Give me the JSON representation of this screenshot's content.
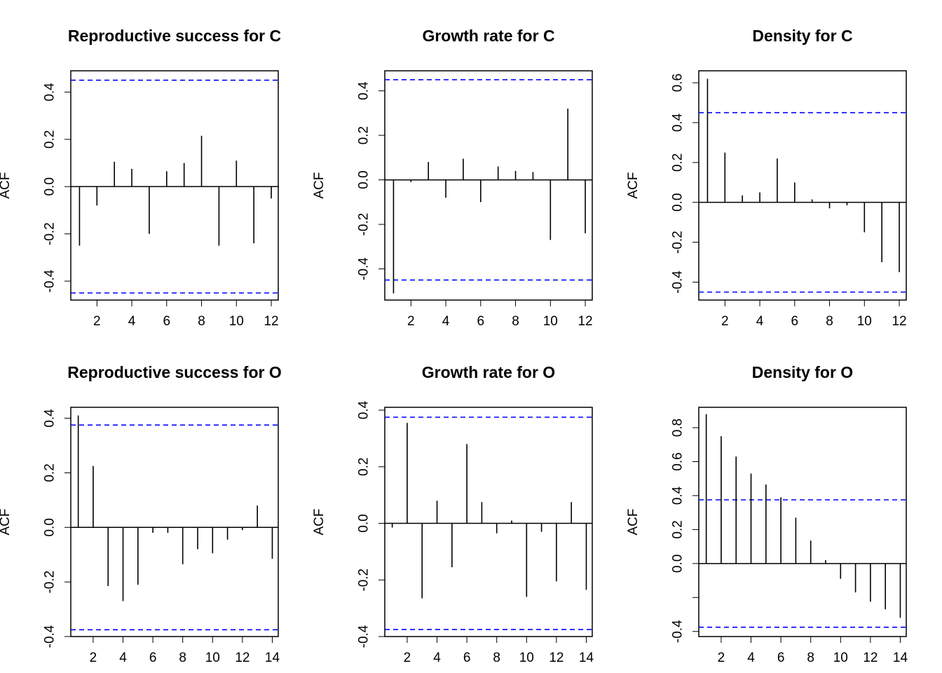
{
  "figure": {
    "bound_color": "#0000ff",
    "line_color": "#000000"
  },
  "chart_data": [
    {
      "type": "bar",
      "title": "Reproductive success for C",
      "ylabel": "ACF",
      "xlabel": "",
      "lags": [
        1,
        2,
        3,
        4,
        5,
        6,
        7,
        8,
        9,
        10,
        11,
        12
      ],
      "values": [
        -0.25,
        -0.08,
        0.105,
        0.075,
        -0.2,
        0.065,
        0.1,
        0.215,
        -0.25,
        0.11,
        -0.24,
        -0.05
      ],
      "bound": 0.45,
      "xlim": [
        0.5,
        12.4
      ],
      "ylim": [
        -0.48,
        0.49
      ],
      "xticks": [
        2,
        4,
        6,
        8,
        10,
        12
      ],
      "yticks": [
        -0.4,
        -0.2,
        0.0,
        0.2,
        0.4
      ],
      "ytick_labels": [
        "-0.4",
        "-0.2",
        "0.0",
        "0.2",
        "0.4"
      ]
    },
    {
      "type": "bar",
      "title": "Growth rate for C",
      "ylabel": "ACF",
      "xlabel": "",
      "lags": [
        1,
        2,
        3,
        4,
        5,
        6,
        7,
        8,
        9,
        10,
        11,
        12
      ],
      "values": [
        -0.51,
        -0.01,
        0.08,
        -0.08,
        0.095,
        -0.1,
        0.06,
        0.04,
        0.035,
        -0.27,
        0.32,
        -0.24
      ],
      "bound": 0.45,
      "xlim": [
        0.5,
        12.4
      ],
      "ylim": [
        -0.54,
        0.49
      ],
      "xticks": [
        2,
        4,
        6,
        8,
        10,
        12
      ],
      "yticks": [
        -0.4,
        -0.2,
        0.0,
        0.2,
        0.4
      ],
      "ytick_labels": [
        "-0.4",
        "-0.2",
        "0.0",
        "0.2",
        "0.4"
      ]
    },
    {
      "type": "bar",
      "title": "Density for C",
      "ylabel": "ACF",
      "xlabel": "",
      "lags": [
        1,
        2,
        3,
        4,
        5,
        6,
        7,
        8,
        9,
        10,
        11,
        12
      ],
      "values": [
        0.62,
        0.25,
        0.035,
        0.05,
        0.22,
        0.1,
        0.015,
        -0.03,
        -0.015,
        -0.15,
        -0.3,
        -0.35
      ],
      "bound": 0.45,
      "xlim": [
        0.5,
        12.4
      ],
      "ylim": [
        -0.49,
        0.66
      ],
      "xticks": [
        2,
        4,
        6,
        8,
        10,
        12
      ],
      "yticks": [
        -0.4,
        -0.2,
        0.0,
        0.2,
        0.4,
        0.6
      ],
      "ytick_labels": [
        "-0.4",
        "-0.2",
        "0.0",
        "0.2",
        "0.4",
        "0.6"
      ]
    },
    {
      "type": "bar",
      "title": "Reproductive success for O",
      "ylabel": "ACF",
      "xlabel": "",
      "lags": [
        1,
        2,
        3,
        4,
        5,
        6,
        7,
        8,
        9,
        10,
        11,
        12,
        13,
        14
      ],
      "values": [
        0.41,
        0.225,
        -0.215,
        -0.27,
        -0.21,
        -0.02,
        -0.02,
        -0.135,
        -0.08,
        -0.095,
        -0.045,
        -0.01,
        0.08,
        -0.115
      ],
      "bound": 0.375,
      "xlim": [
        0.5,
        14.4
      ],
      "ylim": [
        -0.4,
        0.44
      ],
      "xticks": [
        2,
        4,
        6,
        8,
        10,
        12,
        14
      ],
      "yticks": [
        -0.4,
        -0.2,
        0.0,
        0.2,
        0.4
      ],
      "ytick_labels": [
        "-0.4",
        "-0.2",
        "0.0",
        "0.2",
        "0.4"
      ]
    },
    {
      "type": "bar",
      "title": "Growth rate for O",
      "ylabel": "ACF",
      "xlabel": "",
      "lags": [
        1,
        2,
        3,
        4,
        5,
        6,
        7,
        8,
        9,
        10,
        11,
        12,
        13,
        14
      ],
      "values": [
        -0.015,
        0.355,
        -0.265,
        0.08,
        -0.155,
        0.28,
        0.075,
        -0.035,
        0.01,
        -0.26,
        -0.03,
        -0.205,
        0.075,
        -0.235
      ],
      "bound": 0.375,
      "xlim": [
        0.5,
        14.4
      ],
      "ylim": [
        -0.4,
        0.41
      ],
      "xticks": [
        2,
        4,
        6,
        8,
        10,
        12,
        14
      ],
      "yticks": [
        -0.4,
        -0.2,
        0.0,
        0.2,
        0.4
      ],
      "ytick_labels": [
        "-0.4",
        "-0.2",
        "0.0",
        "0.2",
        "0.4"
      ]
    },
    {
      "type": "bar",
      "title": "Density for O",
      "ylabel": "ACF",
      "xlabel": "",
      "lags": [
        1,
        2,
        3,
        4,
        5,
        6,
        7,
        8,
        9,
        10,
        11,
        12,
        13,
        14
      ],
      "values": [
        0.88,
        0.75,
        0.63,
        0.53,
        0.465,
        0.39,
        0.27,
        0.135,
        0.02,
        -0.09,
        -0.17,
        -0.225,
        -0.27,
        -0.32
      ],
      "bound": 0.375,
      "xlim": [
        0.5,
        14.4
      ],
      "ylim": [
        -0.43,
        0.92
      ],
      "xticks": [
        2,
        4,
        6,
        8,
        10,
        12,
        14
      ],
      "yticks": [
        -0.4,
        -0.2,
        0.0,
        0.2,
        0.4,
        0.6,
        0.8
      ],
      "ytick_labels": [
        "-0.4",
        "",
        "0.0",
        "0.2",
        "0.4",
        "0.6",
        "0.8"
      ]
    }
  ]
}
